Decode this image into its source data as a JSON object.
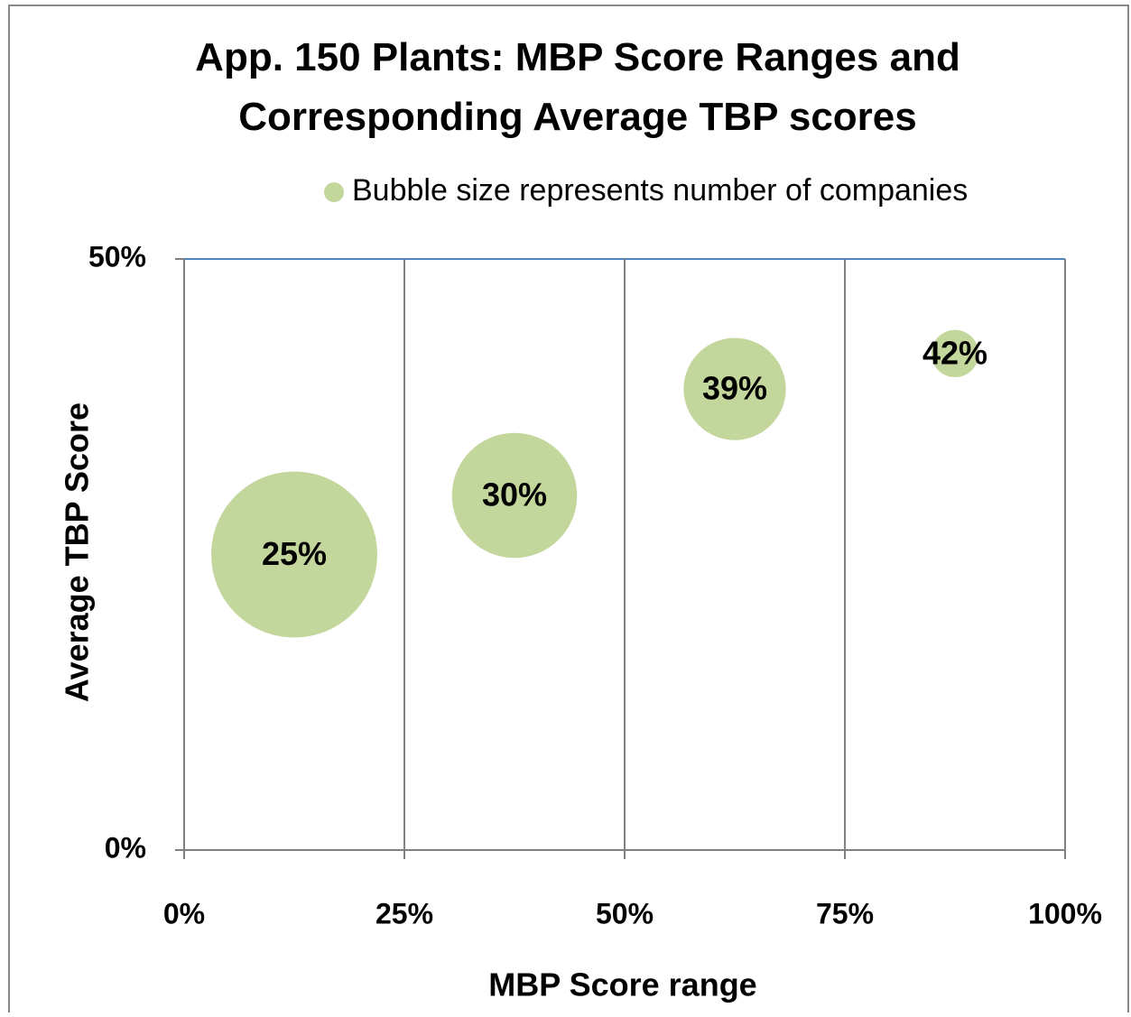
{
  "chart_data": {
    "type": "bubble",
    "title": "App. 150 Plants: MBP Score Ranges  and Corresponding Average TBP scores",
    "xlabel": "MBP Score range",
    "ylabel": "Average TBP Score",
    "series": [
      {
        "name": "Bubble size represents number of companies",
        "color": "#c3d69b",
        "x": [
          12.5,
          37.5,
          62.5,
          87.5
        ],
        "values": [
          25,
          30,
          39,
          42
        ],
        "sizes": [
          74,
          42,
          28,
          6
        ],
        "value_labels": [
          "25%",
          "30%",
          "39%",
          "42%"
        ]
      }
    ],
    "xlim": [
      0,
      100
    ],
    "xticks": [
      {
        "value": 0,
        "label": "0%"
      },
      {
        "value": 25,
        "label": "25%"
      },
      {
        "value": 50,
        "label": "50%"
      },
      {
        "value": 75,
        "label": "75%"
      },
      {
        "value": 100,
        "label": "100%"
      }
    ],
    "ylim": [
      0,
      50
    ],
    "yticks": [
      {
        "value": 0,
        "label": "0%"
      },
      {
        "value": 50,
        "label": "50%"
      }
    ],
    "grid": true,
    "legend": "top-right"
  }
}
